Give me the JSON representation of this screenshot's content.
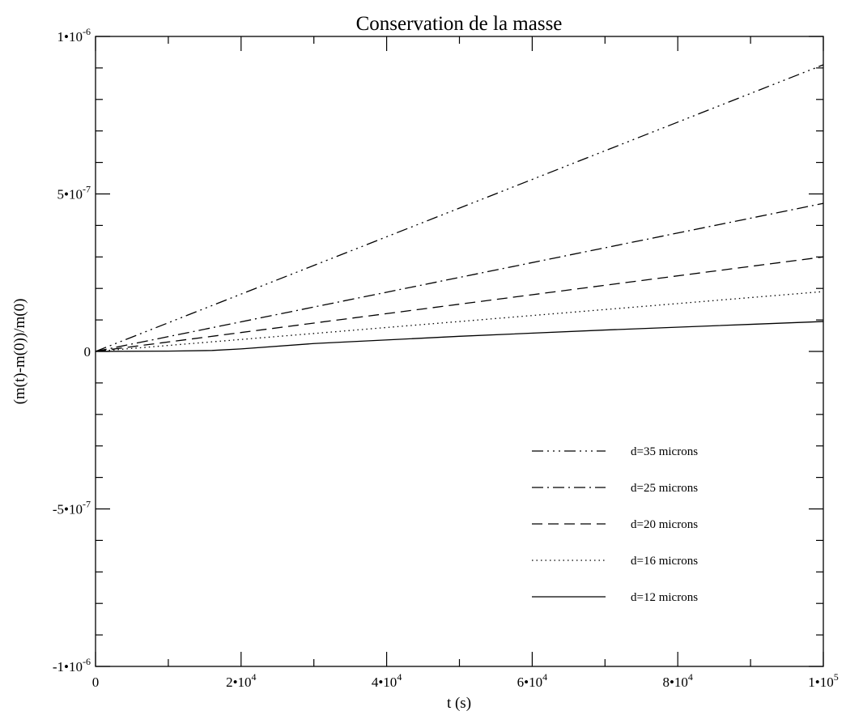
{
  "chart_data": {
    "type": "line",
    "title": "Conservation de la masse",
    "xlabel": "t (s)",
    "ylabel": "(m(t)-m(0))/m(0)",
    "xlim": [
      0,
      100000
    ],
    "ylim": [
      -1e-06,
      1e-06
    ],
    "grid": false,
    "legend_position": "bottom-right",
    "x_ticks": [
      {
        "value": 0,
        "base": "0",
        "exp": ""
      },
      {
        "value": 20000,
        "base": "2•10",
        "exp": "4"
      },
      {
        "value": 40000,
        "base": "4•10",
        "exp": "4"
      },
      {
        "value": 60000,
        "base": "6•10",
        "exp": "4"
      },
      {
        "value": 80000,
        "base": "8•10",
        "exp": "4"
      },
      {
        "value": 100000,
        "base": "1•10",
        "exp": "5"
      }
    ],
    "y_ticks": [
      {
        "value": 1e-06,
        "base": "1•10",
        "exp": "-6"
      },
      {
        "value": 5e-07,
        "base": "5•10",
        "exp": "-7"
      },
      {
        "value": 0,
        "base": "0",
        "exp": ""
      },
      {
        "value": -5e-07,
        "base": "-5•10",
        "exp": "-7"
      },
      {
        "value": -1e-06,
        "base": "-1•10",
        "exp": "-6"
      }
    ],
    "x_minor_step": 10000,
    "y_minor_step": 1e-07,
    "series": [
      {
        "name": "d=35 microns",
        "line_style": "dash-dot-dot-dot",
        "color": "#000000",
        "points": [
          [
            0,
            0
          ],
          [
            100000,
            9.1e-07
          ]
        ]
      },
      {
        "name": "d=25 microns",
        "line_style": "dash-dot",
        "color": "#000000",
        "points": [
          [
            0,
            0
          ],
          [
            100000,
            4.7e-07
          ]
        ]
      },
      {
        "name": "d=20 microns",
        "line_style": "dashed",
        "color": "#000000",
        "points": [
          [
            0,
            0
          ],
          [
            100000,
            3e-07
          ]
        ]
      },
      {
        "name": "d=16 microns",
        "line_style": "dotted",
        "color": "#000000",
        "points": [
          [
            0,
            0
          ],
          [
            100000,
            1.9e-07
          ]
        ]
      },
      {
        "name": "d=12 microns",
        "line_style": "solid",
        "color": "#000000",
        "points": [
          [
            0,
            0
          ],
          [
            10000,
            1e-09
          ],
          [
            16000,
            3e-09
          ],
          [
            20000,
            8e-09
          ],
          [
            30000,
            2.5e-08
          ],
          [
            50000,
            4.8e-08
          ],
          [
            70000,
            6.8e-08
          ],
          [
            90000,
            8.6e-08
          ],
          [
            100000,
            9.5e-08
          ]
        ]
      }
    ]
  }
}
